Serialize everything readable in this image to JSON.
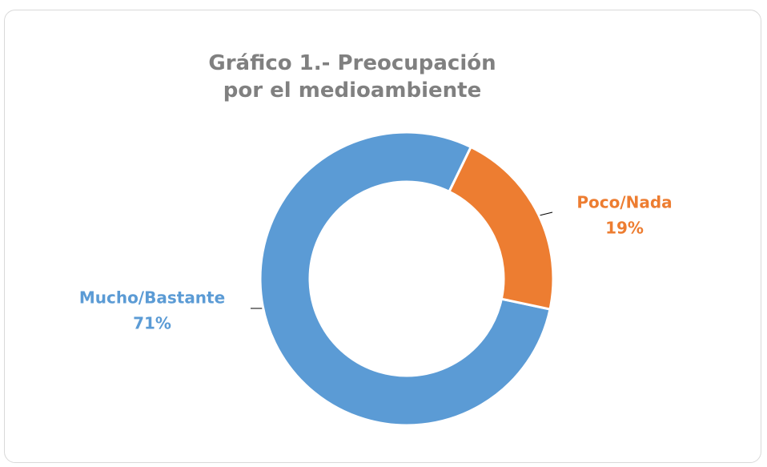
{
  "chart_data": {
    "type": "donut",
    "title": "Gráfico 1.- Preocupación por el medioambiente",
    "categories": [
      "Mucho/Bastante",
      "Poco/Nada"
    ],
    "values": [
      71,
      19
    ],
    "value_labels": [
      "71%",
      "19%"
    ],
    "colors": [
      "#5b9bd5",
      "#ed7d31"
    ],
    "start_angle": 102
  }
}
